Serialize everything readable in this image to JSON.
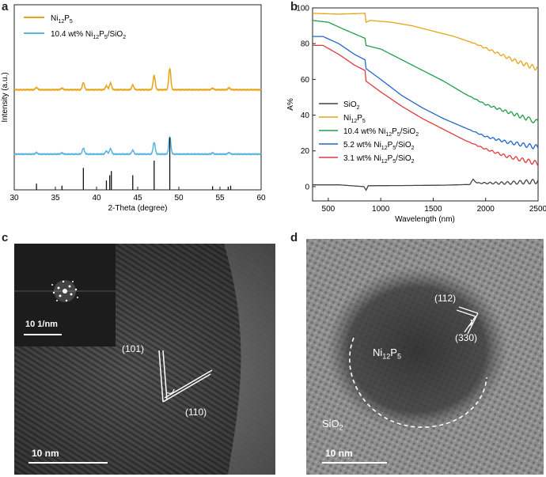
{
  "panels": {
    "a": "a",
    "b": "b",
    "c": "c",
    "d": "d"
  },
  "chart_data": [
    {
      "type": "line",
      "panel": "a",
      "title": "",
      "xlabel": "2-Theta (degree)",
      "ylabel": "Intensity (a.u.)",
      "xlim": [
        30,
        60
      ],
      "x_ticks": [
        "30",
        "35",
        "40",
        "45",
        "50",
        "55",
        "60"
      ],
      "legend": [
        "Ni12P5",
        "10.4 wt% Ni12P5/SiO2"
      ],
      "colors": {
        "ni12p5": "#e8a317",
        "composite": "#5ab4e0",
        "reference": "#111111"
      },
      "series": [
        {
          "name": "Ni12P5",
          "baseline": 0.48,
          "peaks": [
            [
              32.7,
              0.06
            ],
            [
              35.8,
              0.04
            ],
            [
              38.4,
              0.18
            ],
            [
              41.2,
              0.1
            ],
            [
              41.7,
              0.17
            ],
            [
              44.4,
              0.12
            ],
            [
              47.0,
              0.36
            ],
            [
              48.9,
              0.54
            ],
            [
              54.1,
              0.04
            ],
            [
              56.1,
              0.05
            ]
          ]
        },
        {
          "name": "10.4 wt% Ni12P5/SiO2",
          "baseline": 0.12,
          "peaks": [
            [
              32.7,
              0.04
            ],
            [
              35.8,
              0.03
            ],
            [
              38.4,
              0.15
            ],
            [
              41.2,
              0.08
            ],
            [
              41.7,
              0.14
            ],
            [
              44.4,
              0.1
            ],
            [
              47.0,
              0.3
            ],
            [
              48.9,
              0.44
            ],
            [
              54.1,
              0.03
            ],
            [
              56.1,
              0.04
            ]
          ]
        }
      ],
      "reference_lines": [
        [
          32.7,
          0.12
        ],
        [
          35.8,
          0.08
        ],
        [
          38.4,
          0.42
        ],
        [
          41.2,
          0.18
        ],
        [
          41.6,
          0.28
        ],
        [
          41.8,
          0.36
        ],
        [
          44.4,
          0.28
        ],
        [
          47.0,
          0.56
        ],
        [
          48.9,
          1.0
        ],
        [
          54.1,
          0.07
        ],
        [
          56.0,
          0.06
        ],
        [
          56.3,
          0.08
        ]
      ]
    },
    {
      "type": "line",
      "panel": "b",
      "title": "",
      "xlabel": "Wavelength (nm)",
      "ylabel": "A%",
      "xlim": [
        350,
        2500
      ],
      "ylim": [
        -8,
        100
      ],
      "x_ticks": [
        "500",
        "1000",
        "1500",
        "2000",
        "2500"
      ],
      "y_ticks": [
        "0",
        "20",
        "40",
        "60",
        "80",
        "100"
      ],
      "legend_position": "bottom-left",
      "series": [
        {
          "name": "SiO2",
          "color": "#444444",
          "points": [
            [
              350,
              1
            ],
            [
              600,
              1
            ],
            [
              840,
              0
            ],
            [
              860,
              -2
            ],
            [
              880,
              0.5
            ],
            [
              1200,
              0.6
            ],
            [
              1600,
              0.8
            ],
            [
              1850,
              1.2
            ],
            [
              1880,
              4
            ],
            [
              1920,
              2
            ],
            [
              2200,
              2
            ],
            [
              2500,
              3
            ]
          ]
        },
        {
          "name": "Ni12P5",
          "color": "#e8a317",
          "points": [
            [
              350,
              97
            ],
            [
              600,
              96.5
            ],
            [
              850,
              97
            ],
            [
              860,
              92
            ],
            [
              900,
              93
            ],
            [
              1100,
              92
            ],
            [
              1300,
              90
            ],
            [
              1500,
              87
            ],
            [
              1700,
              84
            ],
            [
              1900,
              80
            ],
            [
              2100,
              75
            ],
            [
              2300,
              70
            ],
            [
              2500,
              66
            ]
          ]
        },
        {
          "name": "10.4 wt% Ni12P5/SiO2",
          "color": "#1f9e49",
          "points": [
            [
              350,
              93
            ],
            [
              500,
              92
            ],
            [
              650,
              88
            ],
            [
              850,
              83
            ],
            [
              860,
              79
            ],
            [
              1000,
              77
            ],
            [
              1200,
              71
            ],
            [
              1400,
              65
            ],
            [
              1600,
              59
            ],
            [
              1800,
              52
            ],
            [
              2000,
              46
            ],
            [
              2200,
              42
            ],
            [
              2400,
              38
            ],
            [
              2500,
              36
            ]
          ]
        },
        {
          "name": "5.2 wt% Ni12P5/SiO2",
          "color": "#2266cc",
          "points": [
            [
              350,
              84
            ],
            [
              450,
              84
            ],
            [
              600,
              80
            ],
            [
              750,
              74
            ],
            [
              850,
              71
            ],
            [
              860,
              66
            ],
            [
              1000,
              60
            ],
            [
              1200,
              51
            ],
            [
              1400,
              44
            ],
            [
              1600,
              38
            ],
            [
              1800,
              33
            ],
            [
              2000,
              28
            ],
            [
              2200,
              25
            ],
            [
              2500,
              22
            ]
          ]
        },
        {
          "name": "3.1 wt% Ni12P5/SiO2",
          "color": "#e0393e",
          "points": [
            [
              350,
              79
            ],
            [
              450,
              79
            ],
            [
              600,
              74
            ],
            [
              750,
              68
            ],
            [
              850,
              65
            ],
            [
              860,
              59
            ],
            [
              1000,
              53
            ],
            [
              1200,
              45
            ],
            [
              1400,
              38
            ],
            [
              1600,
              32
            ],
            [
              1800,
              26
            ],
            [
              2000,
              21
            ],
            [
              2200,
              17
            ],
            [
              2500,
              13
            ]
          ]
        }
      ]
    }
  ],
  "panel_c": {
    "scale_label": "10 nm",
    "fft_scale_label": "10 1/nm",
    "plane_1": "(101)",
    "plane_2": "(110)"
  },
  "panel_d": {
    "scale_label": "10 nm",
    "plane_1": "(112)",
    "plane_2": "(330)",
    "particle_label": "Ni12P5",
    "support_label": "SiO2"
  }
}
